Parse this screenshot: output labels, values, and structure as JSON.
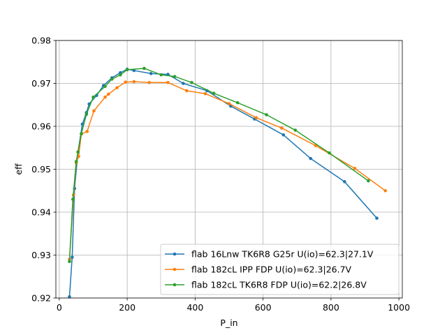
{
  "chart_data": {
    "type": "line",
    "title": "",
    "xlabel": "P_in",
    "ylabel": "eff",
    "xlim": [
      -10,
      1010
    ],
    "ylim": [
      0.92,
      0.98
    ],
    "xticks": [
      0,
      200,
      400,
      600,
      800,
      1000
    ],
    "yticks": [
      0.92,
      0.93,
      0.94,
      0.95,
      0.96,
      0.97,
      0.98
    ],
    "xtick_labels": [
      "0",
      "200",
      "400",
      "600",
      "800",
      "1000"
    ],
    "ytick_labels": [
      "0.92",
      "0.93",
      "0.94",
      "0.95",
      "0.96",
      "0.97",
      "0.98"
    ],
    "grid": true,
    "legend_position": "lower-right",
    "series": [
      {
        "name": "flab 16Lnw TK6R8 G25r U(io)=62.3|27.1V",
        "color": "#1f77b4",
        "x": [
          30,
          38,
          45,
          55,
          68,
          80,
          88,
          110,
          130,
          155,
          180,
          200,
          220,
          270,
          320,
          365,
          435,
          505,
          575,
          660,
          740,
          840,
          935
        ],
        "y": [
          0.9203,
          0.9295,
          0.9455,
          0.954,
          0.9605,
          0.9632,
          0.9652,
          0.9672,
          0.9695,
          0.9713,
          0.9725,
          0.9733,
          0.973,
          0.9723,
          0.9721,
          0.97,
          0.9683,
          0.9647,
          0.9617,
          0.958,
          0.9525,
          0.9471,
          0.9386
        ]
      },
      {
        "name": "flab 182cL IPP FDP U(io)=62.3|26.7V",
        "color": "#ff7f0e",
        "x": [
          30,
          42,
          50,
          57,
          65,
          82,
          102,
          135,
          145,
          170,
          195,
          220,
          265,
          320,
          375,
          430,
          500,
          580,
          655,
          755,
          870,
          960
        ],
        "y": [
          0.929,
          0.944,
          0.9515,
          0.953,
          0.9582,
          0.9588,
          0.9636,
          0.9668,
          0.9675,
          0.969,
          0.9703,
          0.9704,
          0.9702,
          0.9702,
          0.9683,
          0.9676,
          0.9653,
          0.962,
          0.9596,
          0.9555,
          0.9502,
          0.945
        ]
      },
      {
        "name": "flab 182cL TK6R8 FDP U(io)=62.2|26.8V",
        "color": "#2ca02c",
        "x": [
          30,
          40,
          50,
          55,
          65,
          80,
          100,
          135,
          155,
          180,
          200,
          250,
          300,
          340,
          390,
          455,
          525,
          610,
          695,
          795,
          910
        ],
        "y": [
          0.9285,
          0.943,
          0.9518,
          0.954,
          0.9583,
          0.9628,
          0.9668,
          0.9693,
          0.971,
          0.972,
          0.9732,
          0.9735,
          0.972,
          0.9716,
          0.9702,
          0.9677,
          0.9655,
          0.9627,
          0.9591,
          0.9538,
          0.9473
        ]
      }
    ]
  }
}
